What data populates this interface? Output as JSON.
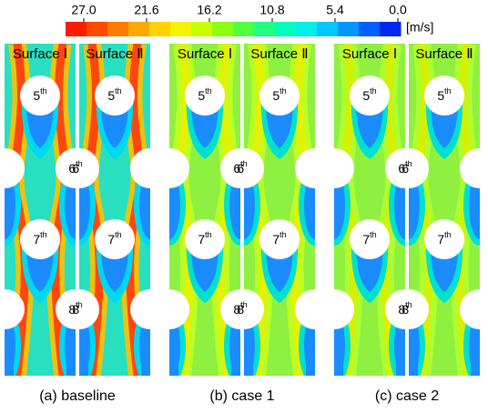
{
  "colorbar": {
    "lim": [
      27,
      0
    ],
    "ticks": [
      {
        "value": 27,
        "label": "27.0"
      },
      {
        "value": 21.6,
        "label": "21.6"
      },
      {
        "value": 16.2,
        "label": "16.2"
      },
      {
        "value": 10.8,
        "label": "10.8"
      },
      {
        "value": 5.4,
        "label": "5.4"
      },
      {
        "value": 0,
        "label": "0.0"
      }
    ],
    "unit": "[m/s]",
    "colors": [
      "#ff1a00",
      "#ff4a00",
      "#ff7a00",
      "#ffa800",
      "#ffd200",
      "#f4f400",
      "#c8ff00",
      "#8cff10",
      "#50ff40",
      "#20ff80",
      "#00ffb8",
      "#00f0e8",
      "#00c8ff",
      "#0098ff",
      "#0060ff",
      "#0028f0"
    ]
  },
  "panels": [
    {
      "caption": "(a) baseline",
      "surfaces": [
        "Surface Ⅰ",
        "Surface Ⅱ"
      ]
    },
    {
      "caption": "(b) case 1",
      "surfaces": [
        "Surface Ⅰ",
        "Surface Ⅱ"
      ]
    },
    {
      "caption": "(c) case 2",
      "surfaces": [
        "Surface Ⅰ",
        "Surface Ⅱ"
      ]
    }
  ],
  "cylinders": [
    {
      "number": "5",
      "suffix": "th"
    },
    {
      "number": "6",
      "suffix": "th"
    },
    {
      "number": "7",
      "suffix": "th"
    },
    {
      "number": "8",
      "suffix": "th"
    }
  ]
}
